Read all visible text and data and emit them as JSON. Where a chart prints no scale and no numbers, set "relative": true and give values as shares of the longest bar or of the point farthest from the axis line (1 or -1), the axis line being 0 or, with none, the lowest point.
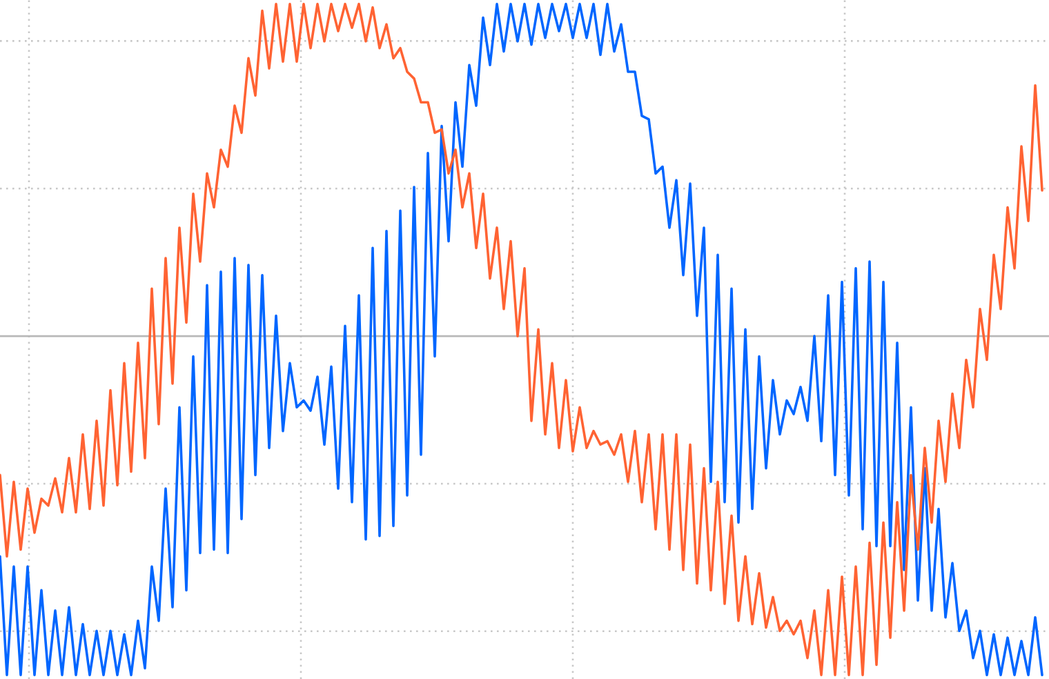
{
  "chart_data": {
    "type": "line",
    "relative": true,
    "grid": true,
    "categories": [
      null,
      null,
      null,
      null,
      null,
      null,
      null,
      null,
      null,
      null,
      null,
      null,
      null,
      null,
      null,
      null,
      null,
      null,
      null,
      null,
      null,
      null,
      null,
      null,
      null,
      null,
      null,
      null,
      null,
      null,
      null,
      null,
      null,
      null,
      null,
      null,
      null,
      null,
      null,
      null,
      null,
      null,
      null,
      null,
      null,
      null,
      null,
      null,
      null,
      null,
      null,
      null,
      null,
      null,
      null,
      null,
      null,
      null,
      null,
      null,
      null,
      null,
      null,
      null,
      null,
      null,
      null,
      null,
      null,
      null,
      null,
      null,
      null,
      null,
      null,
      null,
      null,
      null,
      null,
      null,
      null,
      null,
      null,
      null,
      null,
      null,
      null,
      null,
      null,
      null,
      null,
      null,
      null,
      null,
      null,
      null,
      null,
      null,
      null,
      null,
      null,
      null,
      null,
      null,
      null,
      null,
      null,
      null,
      null,
      null,
      null,
      null,
      null,
      null,
      null,
      null,
      null,
      null,
      null,
      null,
      null,
      null,
      null,
      null,
      null,
      null,
      null,
      null,
      null,
      null,
      null,
      null,
      null,
      null,
      null,
      null,
      null,
      null,
      null,
      null,
      null,
      null,
      null,
      null,
      null,
      null,
      null,
      null,
      null,
      null,
      null,
      null
    ],
    "series": [
      {
        "color": "#0066ff",
        "values": [
          -0.65,
          -1,
          -0.68,
          -1,
          -0.68,
          -1,
          -0.75,
          -1,
          -0.81,
          -1,
          -0.8,
          -1,
          -0.85,
          -1,
          -0.87,
          -1,
          -0.87,
          -1,
          -0.88,
          -1,
          -0.84,
          -0.98,
          -0.68,
          -0.84,
          -0.45,
          -0.8,
          -0.21,
          -0.75,
          -0.06,
          -0.64,
          0.15,
          -0.63,
          0.19,
          -0.64,
          0.23,
          -0.54,
          0.21,
          -0.41,
          0.18,
          -0.33,
          0.06,
          -0.28,
          -0.08,
          -0.21,
          -0.19,
          -0.22,
          -0.12,
          -0.32,
          -0.09,
          -0.45,
          0.03,
          -0.49,
          0.12,
          -0.6,
          0.26,
          -0.59,
          0.31,
          -0.56,
          0.37,
          -0.47,
          0.44,
          -0.35,
          0.54,
          -0.06,
          0.62,
          0.28,
          0.69,
          0.5,
          0.8,
          0.68,
          0.94,
          0.8,
          0.98,
          0.84,
          0.98,
          0.87,
          0.98,
          0.86,
          0.98,
          0.88,
          0.98,
          0.9,
          0.98,
          0.88,
          0.98,
          0.88,
          0.98,
          0.83,
          0.98,
          0.84,
          0.92,
          0.78,
          0.78,
          0.65,
          0.64,
          0.48,
          0.5,
          0.32,
          0.46,
          0.18,
          0.45,
          0.06,
          0.32,
          -0.43,
          0.24,
          -0.49,
          0.14,
          -0.55,
          0.02,
          -0.51,
          -0.06,
          -0.39,
          -0.13,
          -0.29,
          -0.19,
          -0.23,
          -0.15,
          -0.25,
          0.0,
          -0.31,
          0.12,
          -0.41,
          0.16,
          -0.47,
          0.2,
          -0.57,
          0.22,
          -0.62,
          0.16,
          -0.62,
          -0.02,
          -0.69,
          -0.21,
          -0.78,
          -0.39,
          -0.81,
          -0.51,
          -0.83,
          -0.67,
          -0.87,
          -0.81,
          -0.95,
          -0.87,
          -1,
          -0.88,
          -1,
          -0.89,
          -1,
          -0.9,
          -1,
          -0.83,
          -1
        ]
      },
      {
        "color": "#ff6333",
        "values": [
          -0.41,
          -0.65,
          -0.43,
          -0.63,
          -0.45,
          -0.58,
          -0.48,
          -0.5,
          -0.42,
          -0.52,
          -0.36,
          -0.52,
          -0.29,
          -0.51,
          -0.25,
          -0.5,
          -0.16,
          -0.44,
          -0.08,
          -0.4,
          -0.02,
          -0.36,
          0.14,
          -0.26,
          0.23,
          -0.14,
          0.32,
          0.04,
          0.42,
          0.22,
          0.48,
          0.38,
          0.55,
          0.5,
          0.68,
          0.6,
          0.82,
          0.71,
          0.96,
          0.79,
          0.98,
          0.81,
          0.98,
          0.81,
          0.98,
          0.85,
          0.98,
          0.87,
          0.98,
          0.9,
          0.98,
          0.91,
          0.98,
          0.87,
          0.97,
          0.85,
          0.92,
          0.82,
          0.85,
          0.78,
          0.76,
          0.69,
          0.69,
          0.6,
          0.61,
          0.48,
          0.55,
          0.38,
          0.48,
          0.26,
          0.42,
          0.17,
          0.32,
          0.08,
          0.28,
          0.0,
          0.2,
          -0.25,
          0.02,
          -0.29,
          -0.08,
          -0.33,
          -0.13,
          -0.34,
          -0.21,
          -0.33,
          -0.28,
          -0.32,
          -0.31,
          -0.35,
          -0.29,
          -0.43,
          -0.28,
          -0.49,
          -0.29,
          -0.57,
          -0.29,
          -0.63,
          -0.29,
          -0.69,
          -0.32,
          -0.73,
          -0.39,
          -0.75,
          -0.43,
          -0.79,
          -0.53,
          -0.84,
          -0.65,
          -0.85,
          -0.7,
          -0.86,
          -0.77,
          -0.87,
          -0.84,
          -0.88,
          -0.84,
          -0.95,
          -0.81,
          -1,
          -0.75,
          -1,
          -0.71,
          -1,
          -0.68,
          -1,
          -0.61,
          -0.97,
          -0.55,
          -0.89,
          -0.49,
          -0.81,
          -0.41,
          -0.63,
          -0.33,
          -0.55,
          -0.25,
          -0.43,
          -0.17,
          -0.33,
          -0.07,
          -0.21,
          0.08,
          -0.07,
          0.24,
          0.08,
          0.38,
          0.2,
          0.56,
          0.34,
          0.74,
          0.43
        ]
      }
    ]
  }
}
